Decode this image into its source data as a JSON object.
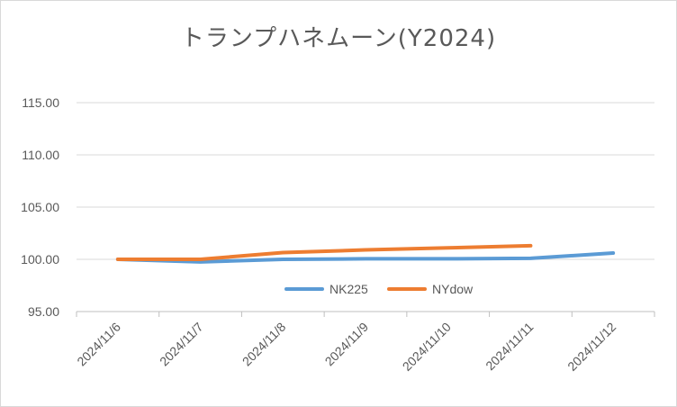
{
  "chart_data": {
    "type": "line",
    "title": "トランプハネムーン(Y2024)",
    "categories": [
      "2024/11/6",
      "2024/11/7",
      "2024/11/8",
      "2024/11/9",
      "2024/11/10",
      "2024/11/11",
      "2024/11/12"
    ],
    "y_ticks": [
      "95.00",
      "100.00",
      "105.00",
      "110.00",
      "115.00"
    ],
    "ylim": [
      95,
      115
    ],
    "grid": true,
    "legend_position": "inside-bottom-center",
    "series": [
      {
        "name": "NK225",
        "color": "#5b9bd5",
        "values": [
          100.0,
          99.75,
          100.0,
          100.05,
          100.05,
          100.1,
          100.6
        ]
      },
      {
        "name": "NYdow",
        "color": "#ed7d31",
        "values": [
          100.0,
          100.0,
          100.65,
          100.9,
          101.1,
          101.3,
          null
        ]
      }
    ]
  }
}
